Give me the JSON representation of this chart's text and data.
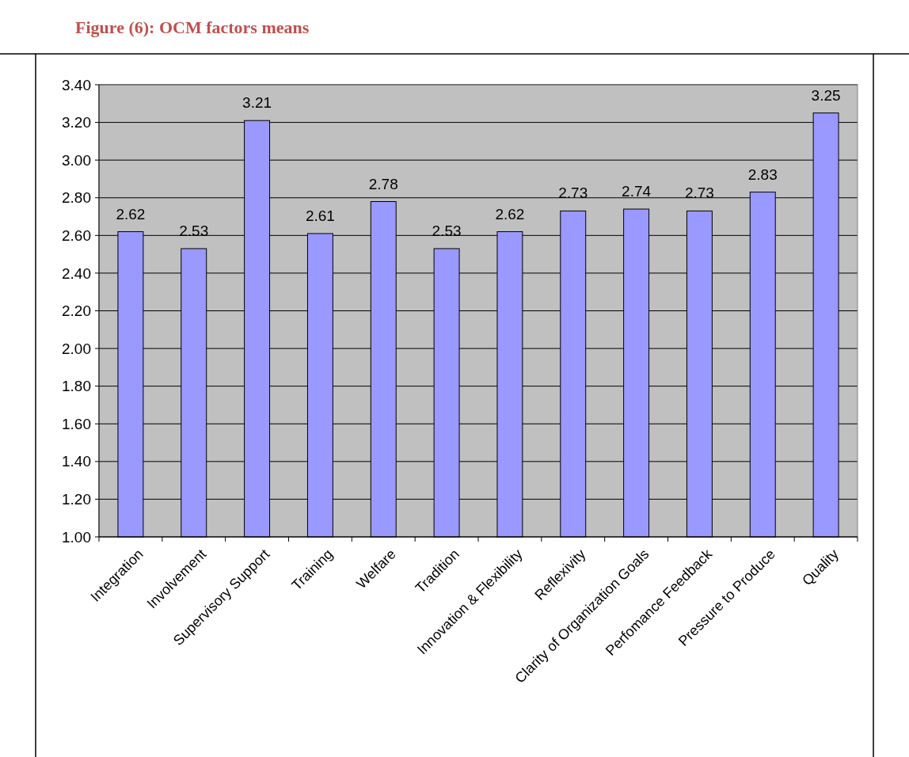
{
  "chart_data": {
    "type": "bar",
    "title": "Figure (6): OCM factors means",
    "categories": [
      "Integration",
      "Involvement",
      "Supervisory Support",
      "Training",
      "Welfare",
      "Tradition",
      "Innovation & Flexibility",
      "Reflexivity",
      "Clarity of Organization Goals",
      "Perfomance Feedback",
      "Pressure to Produce",
      "Quality"
    ],
    "values": [
      2.62,
      2.53,
      3.21,
      2.61,
      2.78,
      2.53,
      2.62,
      2.73,
      2.74,
      2.73,
      2.83,
      3.25
    ],
    "color": "#9999ff",
    "ylim": [
      1,
      3.4
    ],
    "yticks": [
      {
        "value": 1,
        "label": "1.00"
      },
      {
        "value": 1.2,
        "label": "1.20"
      },
      {
        "value": 1.4,
        "label": "1.40"
      },
      {
        "value": 1.6,
        "label": "1.60"
      },
      {
        "value": 1.8,
        "label": "1.80"
      },
      {
        "value": 2,
        "label": "2.00"
      },
      {
        "value": 2.2,
        "label": "2.20"
      },
      {
        "value": 2.4,
        "label": "2.40"
      },
      {
        "value": 2.6,
        "label": "2.60"
      },
      {
        "value": 2.8,
        "label": "2.80"
      },
      {
        "value": 3,
        "label": "3.00"
      },
      {
        "value": 3.2,
        "label": "3.20"
      },
      {
        "value": 3.4,
        "label": "3.40"
      }
    ],
    "grid": "y",
    "data_labels": true
  }
}
